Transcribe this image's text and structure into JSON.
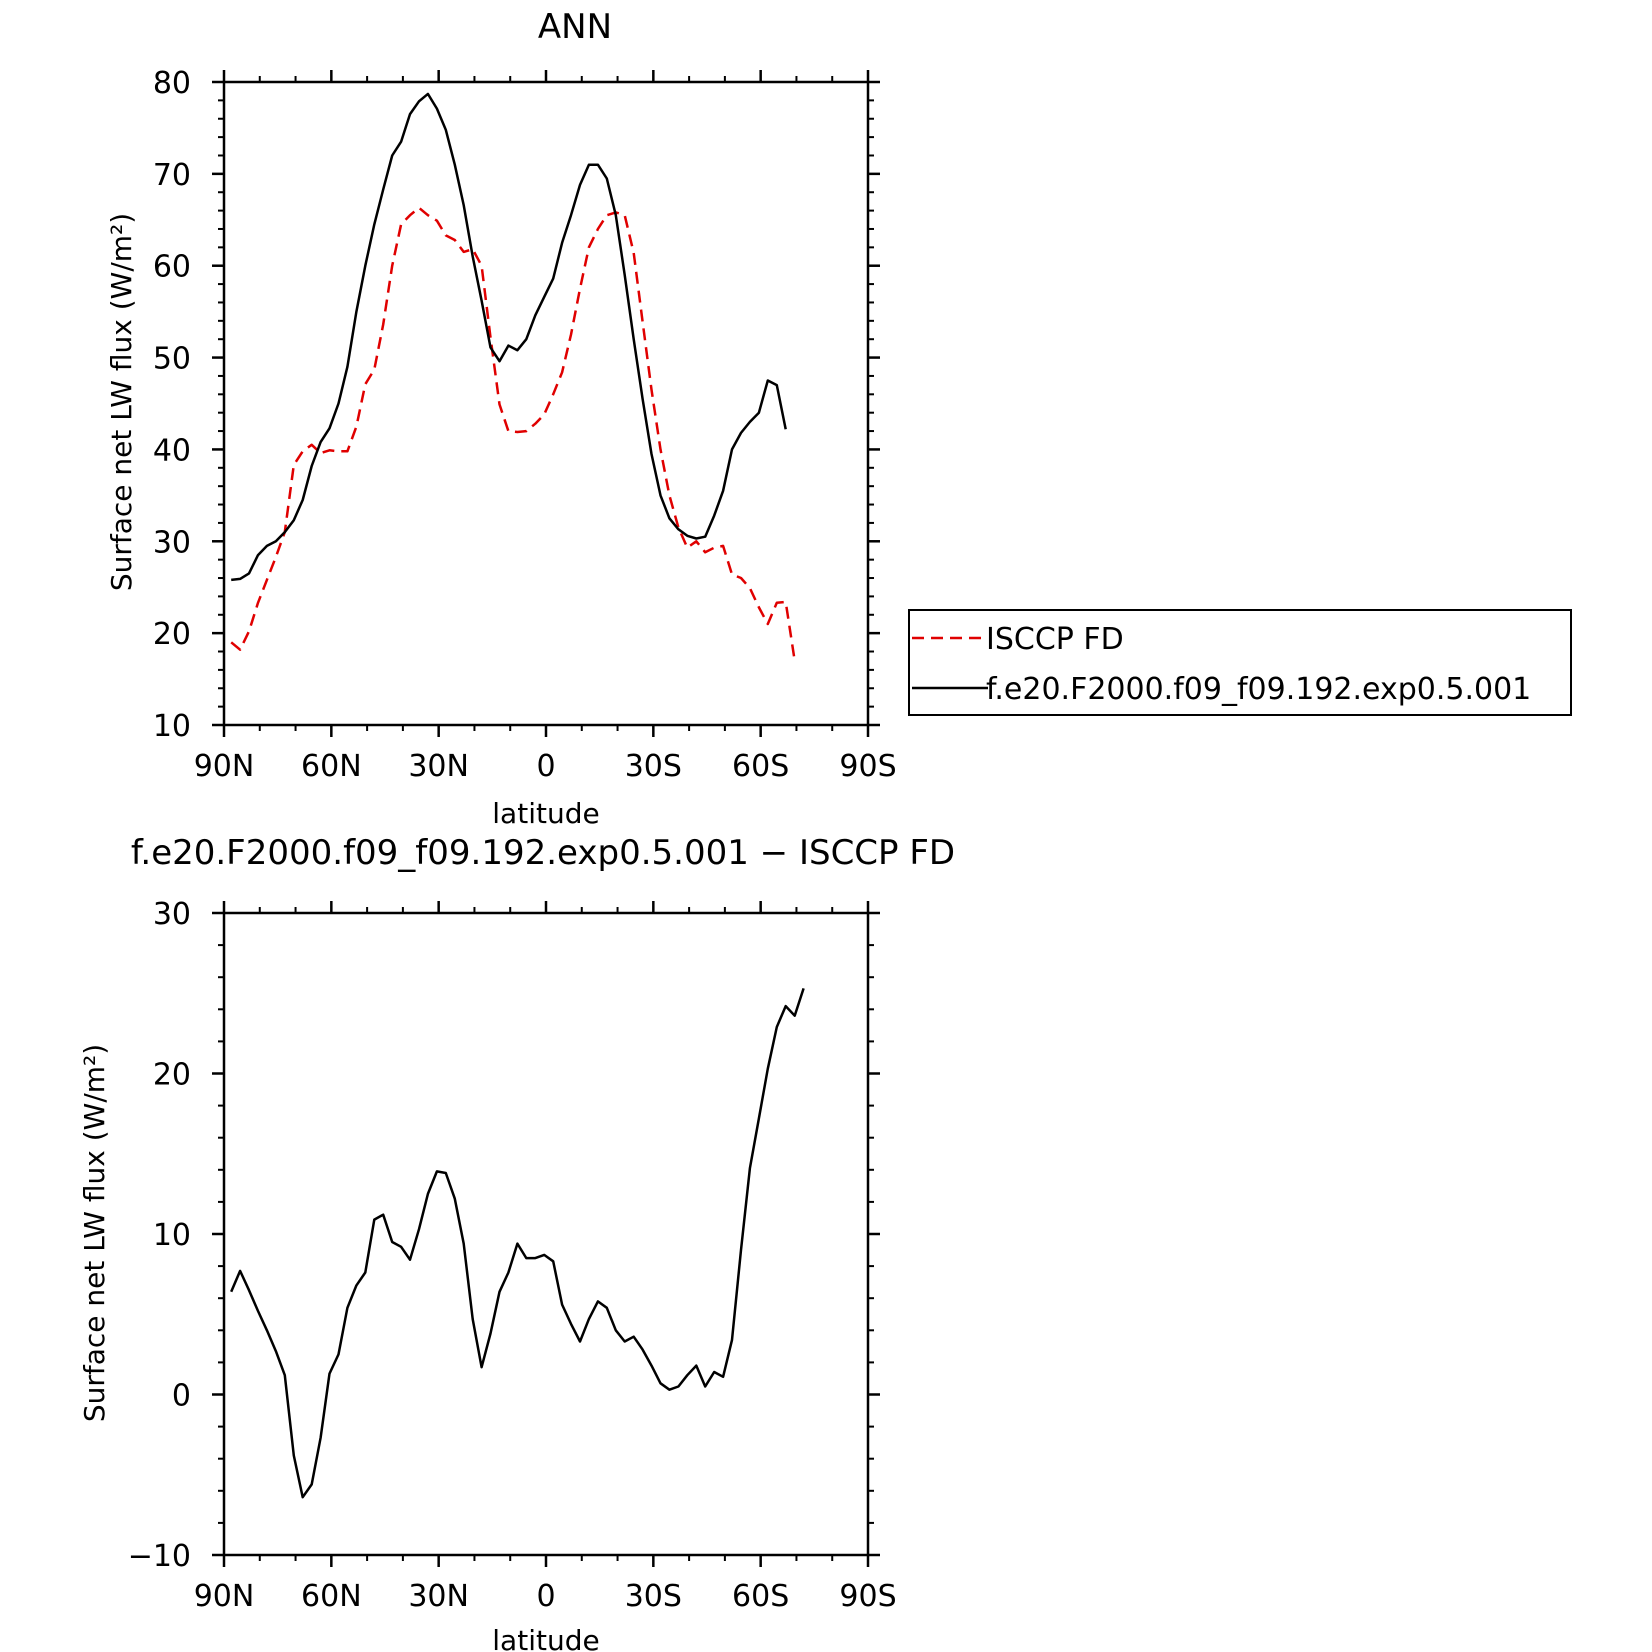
{
  "chart_data": [
    {
      "type": "line",
      "title": "ANN",
      "xlabel": "latitude",
      "ylabel": "Surface net LW flux (W/m²)",
      "xlim": [
        90,
        -90
      ],
      "ylim": [
        10,
        80
      ],
      "x_ticks": [
        {
          "value": 90,
          "label": "90N"
        },
        {
          "value": 60,
          "label": "60N"
        },
        {
          "value": 30,
          "label": "30N"
        },
        {
          "value": 0,
          "label": "0"
        },
        {
          "value": -30,
          "label": "30S"
        },
        {
          "value": -60,
          "label": "60S"
        },
        {
          "value": -90,
          "label": "90S"
        }
      ],
      "y_ticks": [
        10,
        20,
        30,
        40,
        50,
        60,
        70,
        80
      ],
      "grid": false,
      "legend_position": "right",
      "series": [
        {
          "name": "ISCCP FD",
          "color": "#e00000",
          "dash": "dashed",
          "points": [
            [
              88,
              19.0
            ],
            [
              85.5,
              18.2
            ],
            [
              83,
              20.2
            ],
            [
              80.5,
              23.3
            ],
            [
              78,
              25.8
            ],
            [
              75.5,
              28.3
            ],
            [
              73,
              31.0
            ],
            [
              70.5,
              38.3
            ],
            [
              68,
              39.8
            ],
            [
              65.5,
              40.5
            ],
            [
              63,
              39.6
            ],
            [
              60.5,
              39.9
            ],
            [
              58,
              39.8
            ],
            [
              55.5,
              39.8
            ],
            [
              53,
              42.5
            ],
            [
              50.5,
              47.1
            ],
            [
              48,
              48.7
            ],
            [
              45.5,
              53.6
            ],
            [
              43,
              60.0
            ],
            [
              40.5,
              64.5
            ],
            [
              38,
              65.5
            ],
            [
              35.5,
              66.3
            ],
            [
              33,
              65.5
            ],
            [
              30.5,
              64.9
            ],
            [
              28,
              63.3
            ],
            [
              25.5,
              62.8
            ],
            [
              23,
              61.5
            ],
            [
              20.5,
              61.8
            ],
            [
              18,
              60.0
            ],
            [
              15.5,
              52.2
            ],
            [
              13,
              44.9
            ],
            [
              10.5,
              42.0
            ],
            [
              8,
              41.9
            ],
            [
              5.5,
              42.0
            ],
            [
              3,
              42.8
            ],
            [
              0.5,
              43.8
            ],
            [
              -2,
              46.0
            ],
            [
              -4.5,
              48.4
            ],
            [
              -7,
              52.5
            ],
            [
              -9.5,
              57.5
            ],
            [
              -12,
              62.0
            ],
            [
              -14.5,
              64.0
            ],
            [
              -17,
              65.5
            ],
            [
              -19.5,
              65.8
            ],
            [
              -22,
              65.5
            ],
            [
              -24.5,
              61.4
            ],
            [
              -27,
              53.9
            ],
            [
              -29.5,
              46.5
            ],
            [
              -32,
              40.0
            ],
            [
              -34.5,
              35.0
            ],
            [
              -37,
              31.5
            ],
            [
              -39.5,
              29.3
            ],
            [
              -42,
              30.0
            ],
            [
              -44.5,
              28.8
            ],
            [
              -47,
              29.3
            ],
            [
              -49.5,
              29.5
            ],
            [
              -52,
              26.4
            ],
            [
              -54.5,
              26.0
            ],
            [
              -57,
              24.9
            ],
            [
              -59.5,
              22.8
            ],
            [
              -62,
              21.0
            ],
            [
              -64.5,
              23.3
            ],
            [
              -67,
              23.4
            ],
            [
              -69.5,
              17.0
            ]
          ]
        },
        {
          "name": "f.e20.F2000.f09_f09.192.exp0.5.001",
          "color": "#000000",
          "dash": "solid",
          "points": [
            [
              88,
              25.8
            ],
            [
              85.5,
              25.9
            ],
            [
              83,
              26.5
            ],
            [
              80.5,
              28.5
            ],
            [
              78,
              29.5
            ],
            [
              75.5,
              30.0
            ],
            [
              73,
              31.0
            ],
            [
              70.5,
              32.3
            ],
            [
              68,
              34.5
            ],
            [
              65.5,
              38.2
            ],
            [
              63,
              40.8
            ],
            [
              60.5,
              42.3
            ],
            [
              58,
              45.0
            ],
            [
              55.5,
              49.0
            ],
            [
              53,
              55.0
            ],
            [
              50.5,
              60.0
            ],
            [
              48,
              64.5
            ],
            [
              45.5,
              68.3
            ],
            [
              43,
              72.0
            ],
            [
              40.5,
              73.5
            ],
            [
              38,
              76.5
            ],
            [
              35.5,
              77.9
            ],
            [
              33,
              78.7
            ],
            [
              30.5,
              77.1
            ],
            [
              28,
              74.8
            ],
            [
              25.5,
              71.0
            ],
            [
              23,
              66.6
            ],
            [
              20.5,
              61.0
            ],
            [
              18,
              56.2
            ],
            [
              15.5,
              51.1
            ],
            [
              13,
              49.6
            ],
            [
              10.5,
              51.3
            ],
            [
              8,
              50.8
            ],
            [
              5.5,
              52.0
            ],
            [
              3,
              54.6
            ],
            [
              0.5,
              56.6
            ],
            [
              -2,
              58.6
            ],
            [
              -4.5,
              62.5
            ],
            [
              -7,
              65.5
            ],
            [
              -9.5,
              68.8
            ],
            [
              -12,
              71.0
            ],
            [
              -14.5,
              71.0
            ],
            [
              -17,
              69.5
            ],
            [
              -19.5,
              65.5
            ],
            [
              -22,
              59.0
            ],
            [
              -24.5,
              52.0
            ],
            [
              -27,
              45.5
            ],
            [
              -29.5,
              39.5
            ],
            [
              -32,
              35.0
            ],
            [
              -34.5,
              32.5
            ],
            [
              -37,
              31.3
            ],
            [
              -39.5,
              30.6
            ],
            [
              -42,
              30.3
            ],
            [
              -44.5,
              30.5
            ],
            [
              -47,
              32.8
            ],
            [
              -49.5,
              35.5
            ],
            [
              -52,
              40.0
            ],
            [
              -54.5,
              41.8
            ],
            [
              -57,
              43.0
            ],
            [
              -59.5,
              44.0
            ],
            [
              -62,
              47.5
            ],
            [
              -64.5,
              47.0
            ],
            [
              -67,
              42.2
            ]
          ]
        }
      ]
    },
    {
      "type": "line",
      "title": "f.e20.F2000.f09_f09.192.exp0.5.001 − ISCCP FD",
      "xlabel": "latitude",
      "ylabel": "Surface net LW flux (W/m²)",
      "xlim": [
        90,
        -90
      ],
      "ylim": [
        -10,
        30
      ],
      "x_ticks": [
        {
          "value": 90,
          "label": "90N"
        },
        {
          "value": 60,
          "label": "60N"
        },
        {
          "value": 30,
          "label": "30N"
        },
        {
          "value": 0,
          "label": "0"
        },
        {
          "value": -30,
          "label": "30S"
        },
        {
          "value": -60,
          "label": "60S"
        },
        {
          "value": -90,
          "label": "90S"
        }
      ],
      "y_ticks": [
        {
          "value": -10,
          "label": "−10"
        },
        {
          "value": 0,
          "label": "0"
        },
        {
          "value": 10,
          "label": "10"
        },
        {
          "value": 20,
          "label": "20"
        },
        {
          "value": 30,
          "label": "30"
        }
      ],
      "grid": false,
      "series": [
        {
          "name": "",
          "color": "#000000",
          "dash": "solid",
          "points": [
            [
              88,
              6.4
            ],
            [
              85.5,
              7.7
            ],
            [
              83,
              6.5
            ],
            [
              80.5,
              5.2
            ],
            [
              78,
              4.0
            ],
            [
              75.5,
              2.7
            ],
            [
              73,
              1.2
            ],
            [
              70.5,
              -3.8
            ],
            [
              68,
              -6.4
            ],
            [
              65.5,
              -5.6
            ],
            [
              63,
              -2.7
            ],
            [
              60.5,
              1.3
            ],
            [
              58,
              2.5
            ],
            [
              55.5,
              5.4
            ],
            [
              53,
              6.8
            ],
            [
              50.5,
              7.6
            ],
            [
              48,
              10.9
            ],
            [
              45.5,
              11.2
            ],
            [
              43,
              9.5
            ],
            [
              40.5,
              9.2
            ],
            [
              38,
              8.4
            ],
            [
              35.5,
              10.3
            ],
            [
              33,
              12.5
            ],
            [
              30.5,
              13.9
            ],
            [
              28,
              13.8
            ],
            [
              25.5,
              12.2
            ],
            [
              23,
              9.4
            ],
            [
              20.5,
              4.7
            ],
            [
              18,
              1.7
            ],
            [
              15.5,
              3.8
            ],
            [
              13,
              6.4
            ],
            [
              10.5,
              7.6
            ],
            [
              8,
              9.4
            ],
            [
              5.5,
              8.5
            ],
            [
              3,
              8.5
            ],
            [
              0.5,
              8.7
            ],
            [
              -2,
              8.3
            ],
            [
              -4.5,
              5.6
            ],
            [
              -7,
              4.4
            ],
            [
              -9.5,
              3.3
            ],
            [
              -12,
              4.7
            ],
            [
              -14.5,
              5.8
            ],
            [
              -17,
              5.4
            ],
            [
              -19.5,
              4.0
            ],
            [
              -22,
              3.3
            ],
            [
              -24.5,
              3.6
            ],
            [
              -27,
              2.8
            ],
            [
              -29.5,
              1.8
            ],
            [
              -32,
              0.7
            ],
            [
              -34.5,
              0.3
            ],
            [
              -37,
              0.5
            ],
            [
              -39.5,
              1.2
            ],
            [
              -42,
              1.8
            ],
            [
              -44.5,
              0.5
            ],
            [
              -47,
              1.4
            ],
            [
              -49.5,
              1.1
            ],
            [
              -52,
              3.4
            ],
            [
              -54.5,
              9.0
            ],
            [
              -57,
              14.1
            ],
            [
              -59.5,
              17.2
            ],
            [
              -62,
              20.3
            ],
            [
              -64.5,
              22.9
            ],
            [
              -67,
              24.2
            ],
            [
              -69.5,
              23.6
            ],
            [
              -72,
              25.3
            ]
          ]
        }
      ]
    }
  ]
}
